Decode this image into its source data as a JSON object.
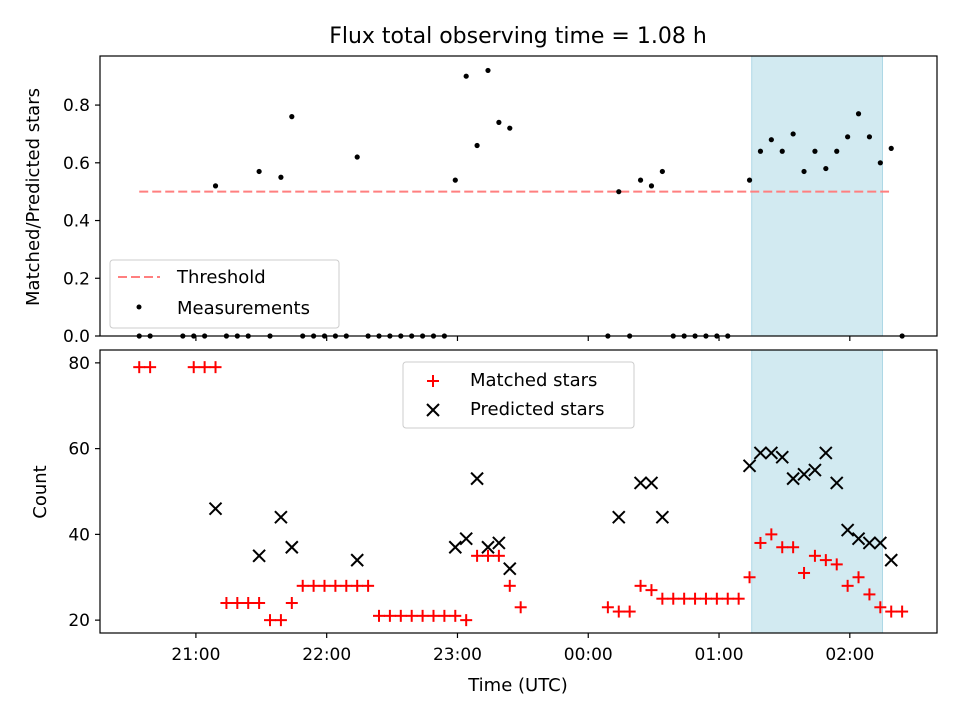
{
  "title": "Flux total observing time = 1.08 h",
  "chart_data": [
    {
      "type": "scatter",
      "ylabel": "Matched/Predicted stars",
      "xlim": [
        "20:16",
        "02:40"
      ],
      "ylim": [
        0,
        0.97
      ],
      "yticks": [
        0.0,
        0.2,
        0.4,
        0.6,
        0.8
      ],
      "ytick_labels": [
        "0.0",
        "0.2",
        "0.4",
        "0.6",
        "0.8"
      ],
      "grid": false,
      "legend": "lower-left",
      "shaded_region": {
        "start": "01:15",
        "end": "02:15",
        "color": "#add8e6"
      },
      "threshold": {
        "name": "Threshold",
        "value": 0.5,
        "start": "20:34",
        "end": "02:18",
        "color": "#ff7f7f",
        "style": "dashed"
      },
      "series": [
        {
          "name": "Measurements",
          "marker": "dot",
          "color": "#000000",
          "points": [
            [
              "20:34",
              0
            ],
            [
              "20:39",
              0
            ],
            [
              "20:54",
              0
            ],
            [
              "20:59",
              0
            ],
            [
              "21:04",
              0
            ],
            [
              "21:09",
              0.52
            ],
            [
              "21:14",
              0
            ],
            [
              "21:19",
              0
            ],
            [
              "21:24",
              0
            ],
            [
              "21:29",
              0.57
            ],
            [
              "21:34",
              0
            ],
            [
              "21:39",
              0.55
            ],
            [
              "21:44",
              0.76
            ],
            [
              "21:49",
              0
            ],
            [
              "21:54",
              0
            ],
            [
              "21:59",
              0
            ],
            [
              "22:04",
              0
            ],
            [
              "22:09",
              0
            ],
            [
              "22:14",
              0.62
            ],
            [
              "22:19",
              0
            ],
            [
              "22:24",
              0
            ],
            [
              "22:29",
              0
            ],
            [
              "22:34",
              0
            ],
            [
              "22:39",
              0
            ],
            [
              "22:44",
              0
            ],
            [
              "22:49",
              0
            ],
            [
              "22:54",
              0
            ],
            [
              "22:59",
              0.54
            ],
            [
              "23:04",
              0.9
            ],
            [
              "23:09",
              0.66
            ],
            [
              "23:14",
              0.92
            ],
            [
              "23:19",
              0.74
            ],
            [
              "23:24",
              0.72
            ],
            [
              "00:09",
              0
            ],
            [
              "00:14",
              0.5
            ],
            [
              "00:19",
              0
            ],
            [
              "00:24",
              0.54
            ],
            [
              "00:29",
              0.52
            ],
            [
              "00:34",
              0.57
            ],
            [
              "00:39",
              0
            ],
            [
              "00:44",
              0
            ],
            [
              "00:49",
              0
            ],
            [
              "00:54",
              0
            ],
            [
              "00:59",
              0
            ],
            [
              "01:04",
              0
            ],
            [
              "01:14",
              0.54
            ],
            [
              "01:19",
              0.64
            ],
            [
              "01:24",
              0.68
            ],
            [
              "01:29",
              0.64
            ],
            [
              "01:34",
              0.7
            ],
            [
              "01:39",
              0.57
            ],
            [
              "01:44",
              0.64
            ],
            [
              "01:49",
              0.58
            ],
            [
              "01:54",
              0.64
            ],
            [
              "01:59",
              0.69
            ],
            [
              "02:04",
              0.77
            ],
            [
              "02:09",
              0.69
            ],
            [
              "02:14",
              0.6
            ],
            [
              "02:19",
              0.65
            ],
            [
              "02:24",
              0
            ]
          ]
        }
      ]
    },
    {
      "type": "scatter",
      "xlabel": "Time (UTC)",
      "ylabel": "Count",
      "xlim": [
        "20:16",
        "02:40"
      ],
      "ylim": [
        17,
        83
      ],
      "xticks": [
        "21:00",
        "22:00",
        "23:00",
        "00:00",
        "01:00",
        "02:00"
      ],
      "xtick_labels": [
        "21:00",
        "22:00",
        "23:00",
        "00:00",
        "01:00",
        "02:00"
      ],
      "yticks": [
        20,
        40,
        60,
        80
      ],
      "ytick_labels": [
        "20",
        "40",
        "60",
        "80"
      ],
      "grid": false,
      "legend": "top-center",
      "shaded_region": {
        "start": "01:15",
        "end": "02:15",
        "color": "#add8e6"
      },
      "series": [
        {
          "name": "Matched stars",
          "marker": "plus",
          "color": "#ff0000",
          "points": [
            [
              "20:34",
              79
            ],
            [
              "20:39",
              79
            ],
            [
              "20:59",
              79
            ],
            [
              "21:04",
              79
            ],
            [
              "21:09",
              79
            ],
            [
              "21:14",
              24
            ],
            [
              "21:19",
              24
            ],
            [
              "21:24",
              24
            ],
            [
              "21:29",
              24
            ],
            [
              "21:34",
              20
            ],
            [
              "21:39",
              20
            ],
            [
              "21:44",
              24
            ],
            [
              "21:49",
              28
            ],
            [
              "21:54",
              28
            ],
            [
              "21:59",
              28
            ],
            [
              "22:04",
              28
            ],
            [
              "22:09",
              28
            ],
            [
              "22:14",
              28
            ],
            [
              "22:19",
              28
            ],
            [
              "22:24",
              21
            ],
            [
              "22:29",
              21
            ],
            [
              "22:34",
              21
            ],
            [
              "22:39",
              21
            ],
            [
              "22:44",
              21
            ],
            [
              "22:49",
              21
            ],
            [
              "22:54",
              21
            ],
            [
              "22:59",
              21
            ],
            [
              "23:04",
              20
            ],
            [
              "23:09",
              35
            ],
            [
              "23:14",
              35
            ],
            [
              "23:19",
              35
            ],
            [
              "23:24",
              28
            ],
            [
              "23:29",
              23
            ],
            [
              "00:09",
              23
            ],
            [
              "00:14",
              22
            ],
            [
              "00:19",
              22
            ],
            [
              "00:24",
              28
            ],
            [
              "00:29",
              27
            ],
            [
              "00:34",
              25
            ],
            [
              "00:39",
              25
            ],
            [
              "00:44",
              25
            ],
            [
              "00:49",
              25
            ],
            [
              "00:54",
              25
            ],
            [
              "00:59",
              25
            ],
            [
              "01:04",
              25
            ],
            [
              "01:09",
              25
            ],
            [
              "01:14",
              30
            ],
            [
              "01:19",
              38
            ],
            [
              "01:24",
              40
            ],
            [
              "01:29",
              37
            ],
            [
              "01:34",
              37
            ],
            [
              "01:39",
              31
            ],
            [
              "01:44",
              35
            ],
            [
              "01:49",
              34
            ],
            [
              "01:54",
              33
            ],
            [
              "01:59",
              28
            ],
            [
              "02:04",
              30
            ],
            [
              "02:09",
              26
            ],
            [
              "02:14",
              23
            ],
            [
              "02:19",
              22
            ],
            [
              "02:24",
              22
            ]
          ]
        },
        {
          "name": "Predicted stars",
          "marker": "x",
          "color": "#000000",
          "points": [
            [
              "21:09",
              46
            ],
            [
              "21:29",
              35
            ],
            [
              "21:39",
              44
            ],
            [
              "21:44",
              37
            ],
            [
              "22:14",
              34
            ],
            [
              "22:59",
              37
            ],
            [
              "23:04",
              39
            ],
            [
              "23:09",
              53
            ],
            [
              "23:14",
              37
            ],
            [
              "23:19",
              38
            ],
            [
              "23:24",
              32
            ],
            [
              "00:14",
              44
            ],
            [
              "00:24",
              52
            ],
            [
              "00:29",
              52
            ],
            [
              "00:34",
              44
            ],
            [
              "01:14",
              56
            ],
            [
              "01:19",
              59
            ],
            [
              "01:24",
              59
            ],
            [
              "01:29",
              58
            ],
            [
              "01:34",
              53
            ],
            [
              "01:39",
              54
            ],
            [
              "01:44",
              55
            ],
            [
              "01:49",
              59
            ],
            [
              "01:54",
              52
            ],
            [
              "01:59",
              41
            ],
            [
              "02:04",
              39
            ],
            [
              "02:09",
              38
            ],
            [
              "02:14",
              38
            ],
            [
              "02:19",
              34
            ]
          ]
        }
      ]
    }
  ]
}
